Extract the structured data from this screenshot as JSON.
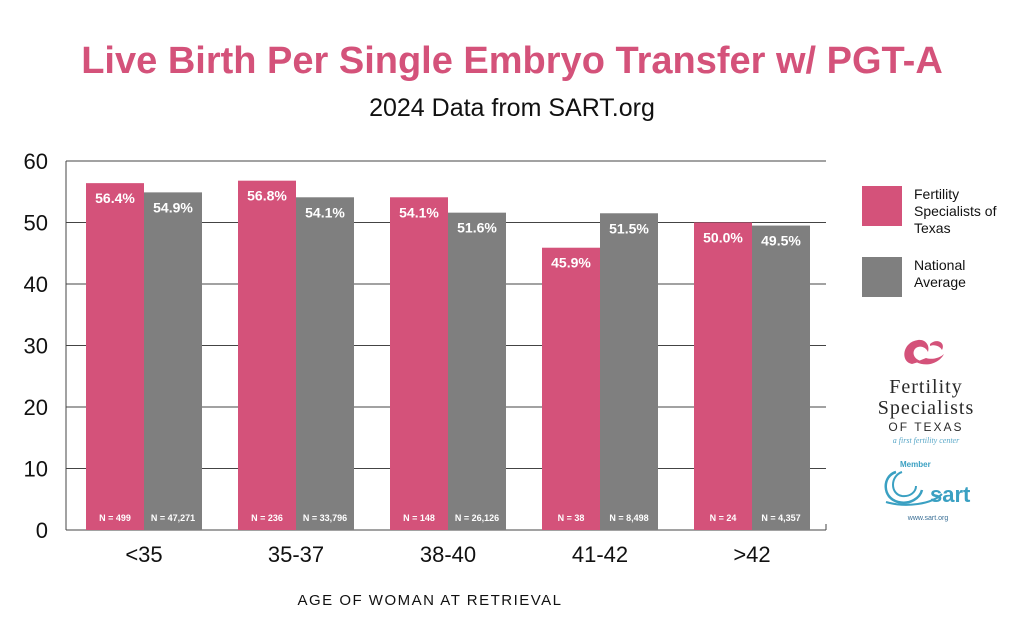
{
  "header": {
    "title": "Live Birth Per Single Embryo Transfer w/ PGT-A",
    "subtitle": "2024 Data from SART.org"
  },
  "colors": {
    "fst": "#d4527a",
    "national": "#7f7f7f",
    "grid": "#444444",
    "sart": "#3aa0c2"
  },
  "chart_data": {
    "type": "bar",
    "categories": [
      "<35",
      "35-37",
      "38-40",
      "41-42",
      ">42"
    ],
    "series": [
      {
        "name": "Fertility Specialists of Texas",
        "values": [
          56.4,
          56.8,
          54.1,
          45.9,
          50.0
        ],
        "labels": [
          "56.4%",
          "56.8%",
          "54.1%",
          "45.9%",
          "50.0%"
        ],
        "n_labels": [
          "N = 499",
          "N = 236",
          "N = 148",
          "N = 38",
          "N = 24"
        ]
      },
      {
        "name": "National Average",
        "values": [
          54.9,
          54.1,
          51.6,
          51.5,
          49.5
        ],
        "labels": [
          "54.9%",
          "54.1%",
          "51.6%",
          "51.5%",
          "49.5%"
        ],
        "n_labels": [
          "N = 47,271",
          "N = 33,796",
          "N = 26,126",
          "N = 8,498",
          "N = 4,357"
        ]
      }
    ],
    "xlabel": "AGE OF WOMAN AT RETRIEVAL",
    "ylabel": "",
    "ylim": [
      0,
      60
    ],
    "yticks": [
      0,
      10,
      20,
      30,
      40,
      50,
      60
    ],
    "grid": true,
    "legend_position": "right"
  },
  "legend": {
    "items": [
      {
        "label": "Fertility Specialists of Texas",
        "color_key": "fst"
      },
      {
        "label": "National Average",
        "color_key": "national"
      }
    ]
  },
  "logos": {
    "fst": {
      "icon": "hands-heart-icon",
      "line1": "Fertility",
      "line2": "Specialists",
      "line3": "OF TEXAS",
      "tagline": "a first fertility center"
    },
    "sart": {
      "icon": "sart-swirl-icon",
      "badge": "Member",
      "name": "sart",
      "url": "www.sart.org"
    }
  }
}
